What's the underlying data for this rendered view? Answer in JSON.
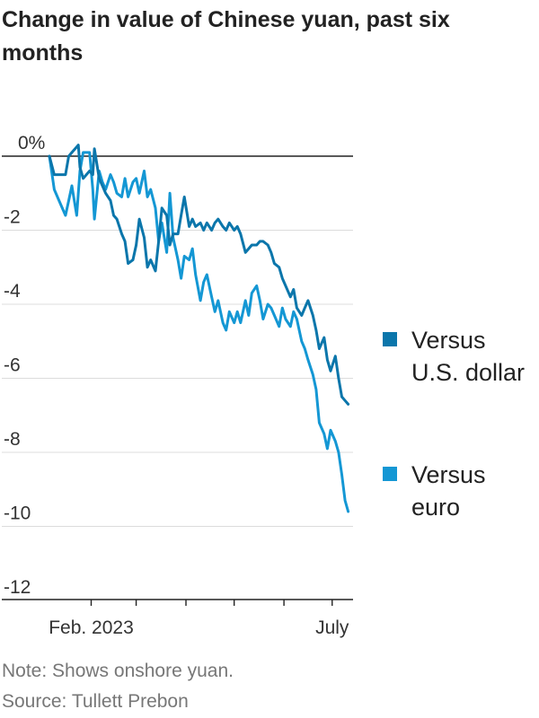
{
  "chart_data": {
    "type": "line",
    "title": "Change in value of Chinese yuan, past six months",
    "xlabel": "",
    "ylabel": "",
    "x_tick_labels": [
      "Feb. 2023",
      "July"
    ],
    "y_ticks": [
      {
        "value": 0,
        "label": "0%"
      },
      {
        "value": -2,
        "label": "-2"
      },
      {
        "value": -4,
        "label": "-4"
      },
      {
        "value": -6,
        "label": "-6"
      },
      {
        "value": -8,
        "label": "-8"
      },
      {
        "value": -10,
        "label": "-10"
      },
      {
        "value": -12,
        "label": "-12"
      }
    ],
    "ylim": [
      -12,
      0
    ],
    "xlim": [
      "2023-01-06",
      "2023-07-14"
    ],
    "grid": true,
    "legend_position": "right",
    "series": [
      {
        "name": "Versus U.S. dollar",
        "color": "#0b76ab",
        "points": [
          [
            "2023-01-06",
            0.0
          ],
          [
            "2023-01-09",
            -0.5
          ],
          [
            "2023-01-13",
            -0.5
          ],
          [
            "2023-01-16",
            -0.5
          ],
          [
            "2023-01-18",
            0.0
          ],
          [
            "2023-01-20",
            0.1
          ],
          [
            "2023-01-24",
            0.3
          ],
          [
            "2023-01-25",
            -0.3
          ],
          [
            "2023-01-27",
            -0.6
          ],
          [
            "2023-01-31",
            -0.4
          ],
          [
            "2023-02-02",
            -0.5
          ],
          [
            "2023-02-03",
            0.2
          ],
          [
            "2023-02-06",
            -0.6
          ],
          [
            "2023-02-08",
            -0.8
          ],
          [
            "2023-02-10",
            -1.0
          ],
          [
            "2023-02-13",
            -1.2
          ],
          [
            "2023-02-15",
            -1.6
          ],
          [
            "2023-02-17",
            -1.7
          ],
          [
            "2023-02-20",
            -2.1
          ],
          [
            "2023-02-22",
            -2.3
          ],
          [
            "2023-02-24",
            -2.9
          ],
          [
            "2023-02-27",
            -2.8
          ],
          [
            "2023-03-01",
            -2.4
          ],
          [
            "2023-03-03",
            -1.7
          ],
          [
            "2023-03-06",
            -2.2
          ],
          [
            "2023-03-08",
            -3.0
          ],
          [
            "2023-03-10",
            -2.8
          ],
          [
            "2023-03-13",
            -3.1
          ],
          [
            "2023-03-15",
            -2.3
          ],
          [
            "2023-03-17",
            -1.4
          ],
          [
            "2023-03-20",
            -1.6
          ],
          [
            "2023-03-22",
            -2.4
          ],
          [
            "2023-03-24",
            -2.1
          ],
          [
            "2023-03-27",
            -2.1
          ],
          [
            "2023-03-29",
            -1.6
          ],
          [
            "2023-03-31",
            -1.1
          ],
          [
            "2023-04-03",
            -1.9
          ],
          [
            "2023-04-05",
            -1.7
          ],
          [
            "2023-04-07",
            -1.9
          ],
          [
            "2023-04-10",
            -1.8
          ],
          [
            "2023-04-12",
            -2.0
          ],
          [
            "2023-04-14",
            -1.8
          ],
          [
            "2023-04-17",
            -2.0
          ],
          [
            "2023-04-19",
            -1.8
          ],
          [
            "2023-04-21",
            -1.7
          ],
          [
            "2023-04-24",
            -1.9
          ],
          [
            "2023-04-26",
            -2.0
          ],
          [
            "2023-04-28",
            -1.8
          ],
          [
            "2023-05-01",
            -2.0
          ],
          [
            "2023-05-03",
            -1.9
          ],
          [
            "2023-05-05",
            -2.1
          ],
          [
            "2023-05-08",
            -2.6
          ],
          [
            "2023-05-10",
            -2.5
          ],
          [
            "2023-05-12",
            -2.4
          ],
          [
            "2023-05-15",
            -2.4
          ],
          [
            "2023-05-17",
            -2.3
          ],
          [
            "2023-05-19",
            -2.3
          ],
          [
            "2023-05-22",
            -2.4
          ],
          [
            "2023-05-24",
            -2.6
          ],
          [
            "2023-05-26",
            -2.9
          ],
          [
            "2023-05-29",
            -3.0
          ],
          [
            "2023-05-31",
            -3.3
          ],
          [
            "2023-06-02",
            -3.5
          ],
          [
            "2023-06-05",
            -3.8
          ],
          [
            "2023-06-07",
            -3.6
          ],
          [
            "2023-06-09",
            -4.1
          ],
          [
            "2023-06-12",
            -4.3
          ],
          [
            "2023-06-14",
            -4.1
          ],
          [
            "2023-06-16",
            -3.9
          ],
          [
            "2023-06-19",
            -4.3
          ],
          [
            "2023-06-21",
            -4.7
          ],
          [
            "2023-06-23",
            -5.2
          ],
          [
            "2023-06-26",
            -4.9
          ],
          [
            "2023-06-28",
            -5.5
          ],
          [
            "2023-06-30",
            -5.8
          ],
          [
            "2023-07-03",
            -5.4
          ],
          [
            "2023-07-05",
            -6.0
          ],
          [
            "2023-07-07",
            -6.5
          ],
          [
            "2023-07-09",
            -6.6
          ],
          [
            "2023-07-11",
            -6.7
          ]
        ]
      },
      {
        "name": "Versus euro",
        "color": "#1497d4",
        "points": [
          [
            "2023-01-06",
            0.0
          ],
          [
            "2023-01-09",
            -0.9
          ],
          [
            "2023-01-13",
            -1.3
          ],
          [
            "2023-01-16",
            -1.6
          ],
          [
            "2023-01-18",
            -1.2
          ],
          [
            "2023-01-20",
            -0.8
          ],
          [
            "2023-01-23",
            -1.6
          ],
          [
            "2023-01-25",
            -0.4
          ],
          [
            "2023-01-27",
            0.1
          ],
          [
            "2023-01-31",
            0.1
          ],
          [
            "2023-02-02",
            -0.9
          ],
          [
            "2023-02-03",
            -1.7
          ],
          [
            "2023-02-06",
            -0.4
          ],
          [
            "2023-02-08",
            -0.7
          ],
          [
            "2023-02-10",
            -0.9
          ],
          [
            "2023-02-13",
            -0.5
          ],
          [
            "2023-02-15",
            -0.7
          ],
          [
            "2023-02-17",
            -1.0
          ],
          [
            "2023-02-20",
            -1.1
          ],
          [
            "2023-02-22",
            -0.6
          ],
          [
            "2023-02-24",
            -1.1
          ],
          [
            "2023-02-27",
            -0.7
          ],
          [
            "2023-03-01",
            -0.6
          ],
          [
            "2023-03-03",
            -1.0
          ],
          [
            "2023-03-06",
            -0.4
          ],
          [
            "2023-03-08",
            -1.1
          ],
          [
            "2023-03-10",
            -0.9
          ],
          [
            "2023-03-13",
            -1.4
          ],
          [
            "2023-03-15",
            -2.3
          ],
          [
            "2023-03-17",
            -1.8
          ],
          [
            "2023-03-20",
            -2.6
          ],
          [
            "2023-03-22",
            -1.0
          ],
          [
            "2023-03-24",
            -2.2
          ],
          [
            "2023-03-27",
            -2.8
          ],
          [
            "2023-03-29",
            -3.3
          ],
          [
            "2023-03-31",
            -2.7
          ],
          [
            "2023-04-03",
            -2.8
          ],
          [
            "2023-04-05",
            -2.5
          ],
          [
            "2023-04-07",
            -3.2
          ],
          [
            "2023-04-10",
            -3.9
          ],
          [
            "2023-04-12",
            -3.4
          ],
          [
            "2023-04-14",
            -3.2
          ],
          [
            "2023-04-17",
            -3.8
          ],
          [
            "2023-04-19",
            -4.2
          ],
          [
            "2023-04-21",
            -3.9
          ],
          [
            "2023-04-24",
            -4.5
          ],
          [
            "2023-04-26",
            -4.7
          ],
          [
            "2023-04-28",
            -4.2
          ],
          [
            "2023-05-01",
            -4.5
          ],
          [
            "2023-05-03",
            -4.2
          ],
          [
            "2023-05-05",
            -4.5
          ],
          [
            "2023-05-08",
            -3.9
          ],
          [
            "2023-05-10",
            -4.3
          ],
          [
            "2023-05-12",
            -3.7
          ],
          [
            "2023-05-15",
            -3.5
          ],
          [
            "2023-05-17",
            -3.9
          ],
          [
            "2023-05-19",
            -4.4
          ],
          [
            "2023-05-22",
            -4.0
          ],
          [
            "2023-05-24",
            -4.1
          ],
          [
            "2023-05-26",
            -4.3
          ],
          [
            "2023-05-29",
            -4.6
          ],
          [
            "2023-05-31",
            -4.1
          ],
          [
            "2023-06-02",
            -4.4
          ],
          [
            "2023-06-05",
            -4.6
          ],
          [
            "2023-06-07",
            -4.2
          ],
          [
            "2023-06-09",
            -4.4
          ],
          [
            "2023-06-12",
            -5.0
          ],
          [
            "2023-06-14",
            -5.2
          ],
          [
            "2023-06-16",
            -5.5
          ],
          [
            "2023-06-19",
            -5.9
          ],
          [
            "2023-06-21",
            -6.3
          ],
          [
            "2023-06-23",
            -7.2
          ],
          [
            "2023-06-26",
            -7.5
          ],
          [
            "2023-06-28",
            -7.9
          ],
          [
            "2023-06-30",
            -7.4
          ],
          [
            "2023-07-03",
            -7.7
          ],
          [
            "2023-07-05",
            -8.0
          ],
          [
            "2023-07-07",
            -8.6
          ],
          [
            "2023-07-09",
            -9.3
          ],
          [
            "2023-07-11",
            -9.6
          ]
        ]
      }
    ]
  },
  "notes": {
    "note": "Note: Shows onshore yuan.",
    "source": "Source: Tullett Prebon"
  }
}
